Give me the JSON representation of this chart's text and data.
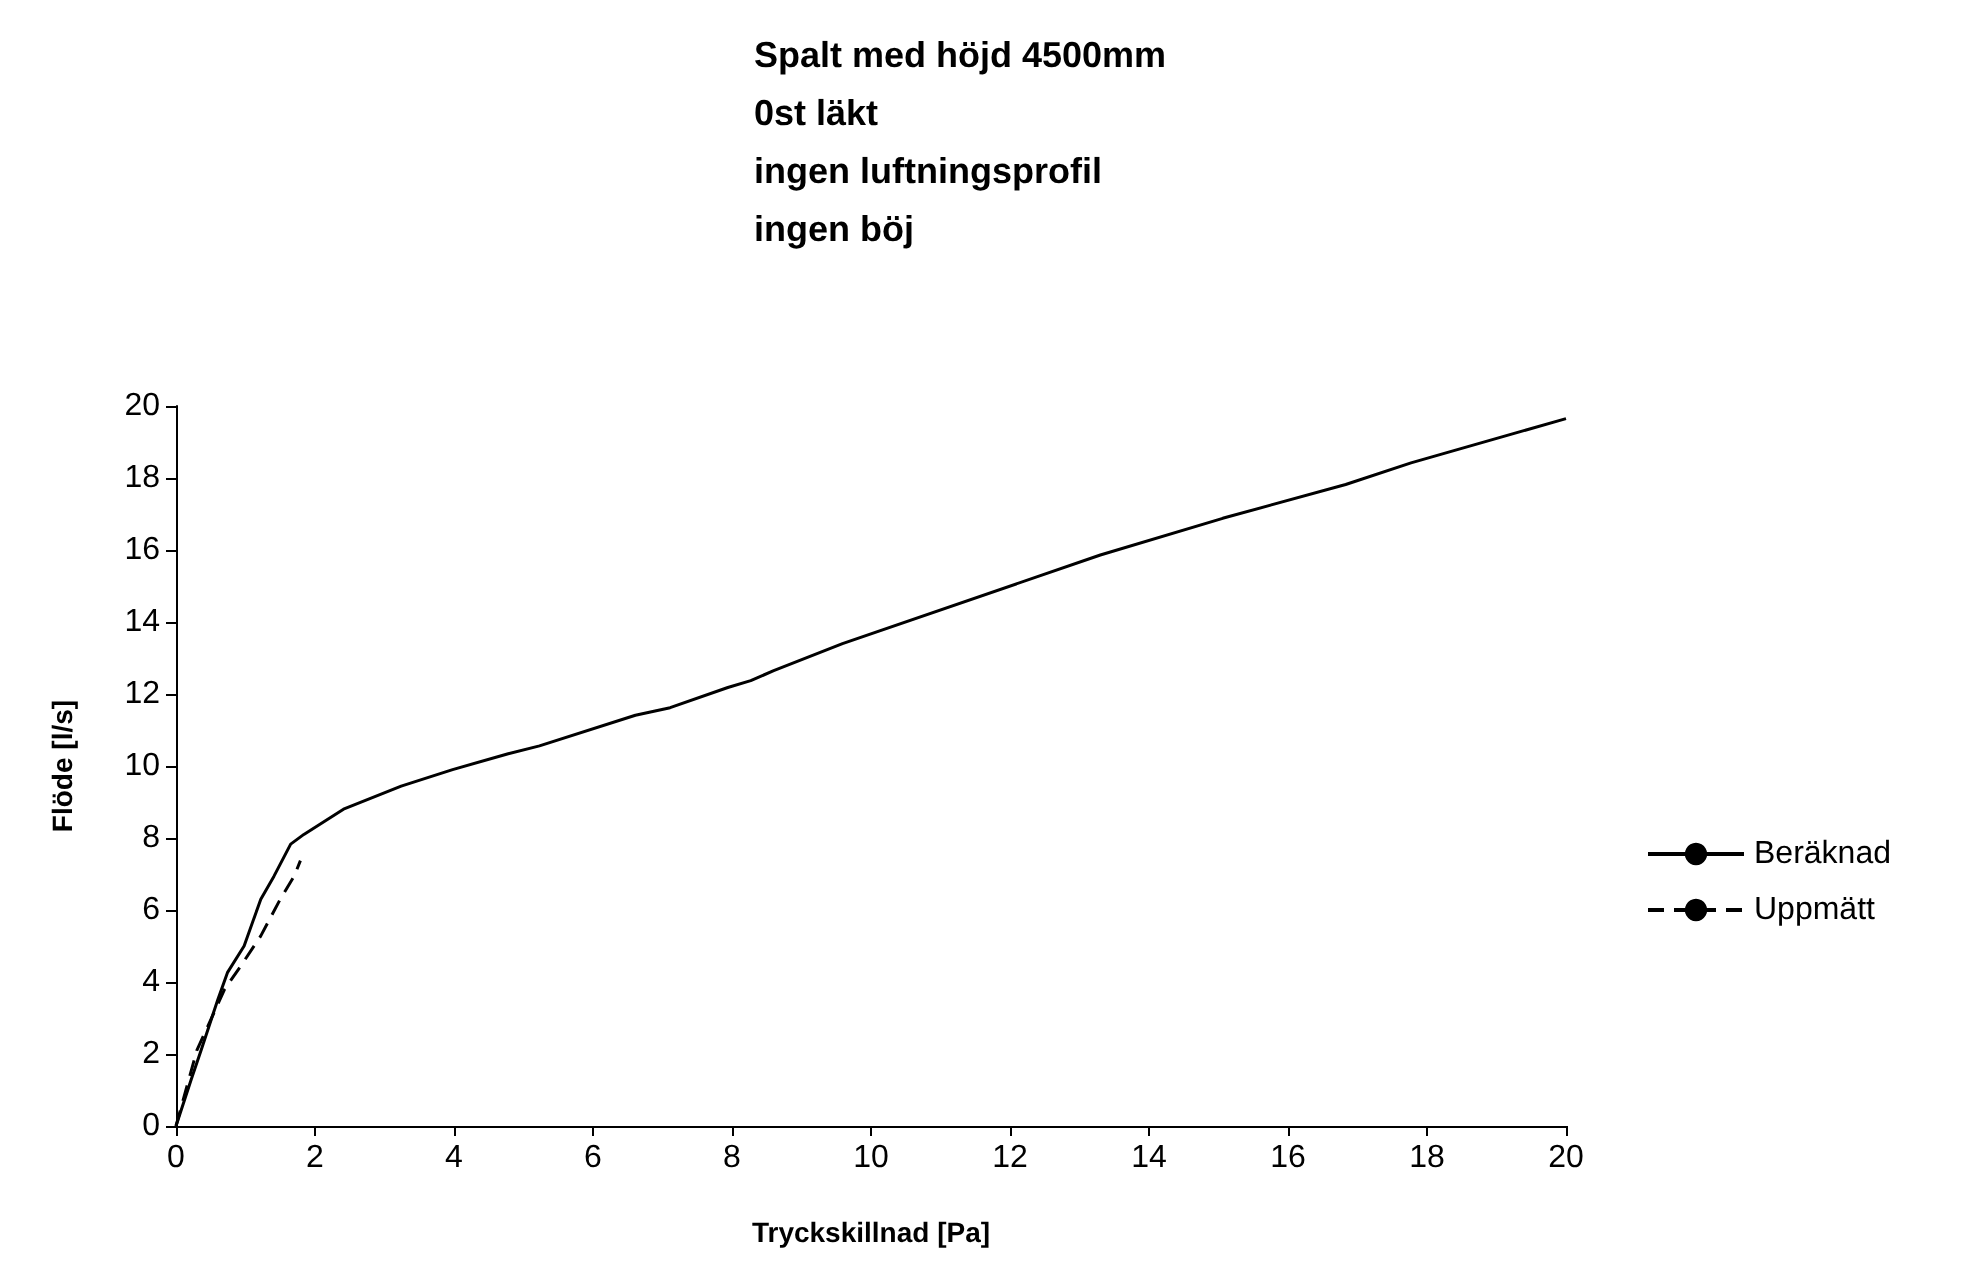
{
  "chart_data": {
    "type": "line",
    "title": "Spalt med höjd 4500mm\n0st läkt\ningen luftningsprofil\ningen böj",
    "xlabel": "Tryckskillnad [Pa]",
    "ylabel": "Flöde [l/s]",
    "xlim": [
      0,
      20
    ],
    "xticks": [
      0,
      2,
      4,
      6,
      8,
      10,
      12,
      14,
      16,
      18,
      20
    ],
    "ylim": [
      0,
      20
    ],
    "yticks": [
      0,
      2,
      4,
      6,
      8,
      10,
      12,
      14,
      16,
      18,
      20
    ],
    "grid": false,
    "legend": "right",
    "marker": "none",
    "series": [
      {
        "name": "Beräknad",
        "color": "#000000",
        "line_style": "solid",
        "x": [
          0,
          0.22,
          0.36,
          0.6,
          0.74,
          0.98,
          1.22,
          1.41,
          1.65,
          1.84,
          2.41,
          3.24,
          3.98,
          4.78,
          5.23,
          6.61,
          7.11,
          7.94,
          8.27,
          8.6,
          9.59,
          13.3,
          15.06,
          16.83,
          17.77,
          20
        ],
        "values": [
          0,
          1.3,
          2.1,
          3.5,
          4.26,
          5.0,
          6.3,
          6.94,
          7.83,
          8.1,
          8.8,
          9.44,
          9.9,
          10.34,
          10.56,
          11.41,
          11.62,
          12.18,
          12.37,
          12.65,
          13.4,
          15.86,
          16.88,
          17.82,
          18.42,
          19.65
        ]
      },
      {
        "name": "Uppmätt",
        "color": "#000000",
        "line_style": "dashed",
        "x": [
          0,
          0.3,
          0.7,
          0.93,
          1.22,
          1.5,
          1.7,
          1.79
        ],
        "values": [
          0,
          2.1,
          3.8,
          4.44,
          5.28,
          6.3,
          6.94,
          7.37
        ]
      }
    ]
  }
}
